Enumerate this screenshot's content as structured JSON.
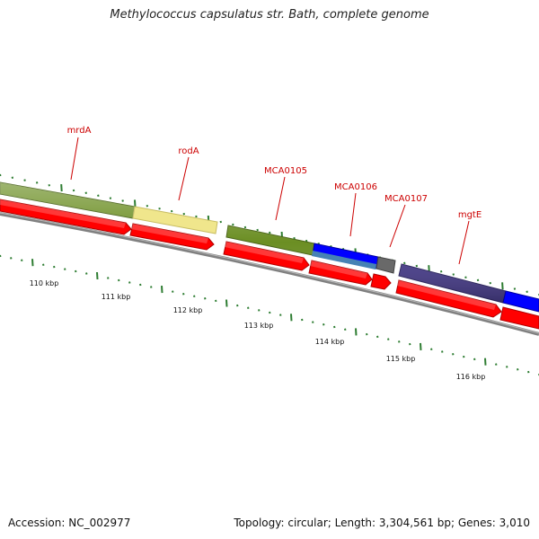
{
  "title": "Methylococcus capsulatus str. Bath, complete genome",
  "footer": {
    "accession": "Accession: NC_002977",
    "summary": "Topology: circular; Length: 3,304,561 bp; Genes: 3,010"
  },
  "gene_labels": [
    "mrdA",
    "rodA",
    "MCA0105",
    "MCA0106",
    "MCA0107",
    "mgtE"
  ],
  "kbp_labels": [
    "110 kbp",
    "111 kbp",
    "112 kbp",
    "113 kbp",
    "114 kbp",
    "115 kbp",
    "116 kbp"
  ],
  "colors": {
    "cds": "#ff0000",
    "backbone": "#808080",
    "olive": "#6b8e23",
    "khaki": "#f0e68c",
    "blue": "#0000ff",
    "steelblue": "#4682b4",
    "slate": "#483d8b",
    "grey": "#696969",
    "tick": "#2e7d32",
    "label": "#cc0000"
  }
}
